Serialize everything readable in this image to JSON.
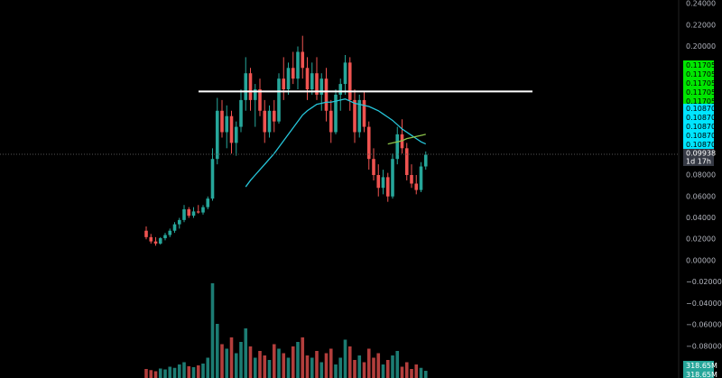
{
  "chart_data": {
    "type": "candlestick",
    "colors": {
      "up": "#26a69a",
      "down": "#ef5350",
      "ma": "#26c6da",
      "ma2": "#8bc34a",
      "hline": "#ffffff"
    },
    "ylim": [
      -0.1095,
      0.2434
    ],
    "yticks": [
      {
        "value": 0.24,
        "label": "0.24000"
      },
      {
        "value": 0.22,
        "label": "0.22000"
      },
      {
        "value": 0.2,
        "label": "0.20000"
      },
      {
        "value": 0.08,
        "label": "0.08000"
      },
      {
        "value": 0.06,
        "label": "0.06000"
      },
      {
        "value": 0.04,
        "label": "0.04000"
      },
      {
        "value": 0.02,
        "label": "0.02000"
      },
      {
        "value": 0,
        "label": "0.00000"
      },
      {
        "value": -0.02,
        "label": "−0.02000"
      },
      {
        "value": -0.04,
        "label": "−0.04000"
      },
      {
        "value": -0.06,
        "label": "−0.06000"
      },
      {
        "value": -0.08,
        "label": "−0.08000"
      }
    ],
    "green_labels": [
      "0.11705",
      "0.11705",
      "0.11705",
      "0.11705",
      "0.11705"
    ],
    "cyan_labels": [
      "0.10870",
      "0.10870",
      "0.10870",
      "0.10870",
      "0.10870"
    ],
    "last_price": {
      "value": 0.09938,
      "label": "0.09938"
    },
    "countdown": "1d 17h",
    "volume_labels": [
      "318.65M",
      "318.65M"
    ],
    "hline": 0.158,
    "volume_lim": [
      0,
      16760
    ],
    "open": [
      0.028,
      0.022,
      0.018,
      0.016,
      0.021,
      0.024,
      0.028,
      0.034,
      0.038,
      0.048,
      0.042,
      0.046,
      0.045,
      0.05,
      0.058,
      0.095,
      0.14,
      0.12,
      0.135,
      0.11,
      0.125,
      0.15,
      0.175,
      0.15,
      0.16,
      0.14,
      0.12,
      0.14,
      0.13,
      0.17,
      0.16,
      0.18,
      0.17,
      0.195,
      0.18,
      0.16,
      0.175,
      0.155,
      0.17,
      0.14,
      0.12,
      0.155,
      0.165,
      0.185,
      0.15,
      0.12,
      0.15,
      0.125,
      0.095,
      0.08,
      0.068,
      0.078,
      0.06,
      0.095,
      0.118,
      0.105,
      0.08,
      0.072,
      0.066,
      0.088
    ],
    "high": [
      0.032,
      0.025,
      0.022,
      0.022,
      0.026,
      0.03,
      0.036,
      0.04,
      0.052,
      0.05,
      0.05,
      0.052,
      0.052,
      0.06,
      0.105,
      0.152,
      0.15,
      0.145,
      0.14,
      0.13,
      0.16,
      0.19,
      0.18,
      0.165,
      0.17,
      0.15,
      0.145,
      0.15,
      0.175,
      0.19,
      0.185,
      0.195,
      0.2,
      0.21,
      0.19,
      0.185,
      0.19,
      0.175,
      0.18,
      0.15,
      0.16,
      0.17,
      0.192,
      0.19,
      0.16,
      0.155,
      0.158,
      0.13,
      0.105,
      0.09,
      0.085,
      0.082,
      0.1,
      0.125,
      0.132,
      0.11,
      0.09,
      0.08,
      0.092,
      0.102
    ],
    "low": [
      0.02,
      0.016,
      0.014,
      0.015,
      0.019,
      0.022,
      0.026,
      0.03,
      0.036,
      0.04,
      0.04,
      0.044,
      0.043,
      0.048,
      0.056,
      0.09,
      0.115,
      0.105,
      0.1,
      0.098,
      0.12,
      0.14,
      0.14,
      0.125,
      0.135,
      0.11,
      0.115,
      0.12,
      0.128,
      0.15,
      0.155,
      0.165,
      0.16,
      0.17,
      0.15,
      0.155,
      0.15,
      0.14,
      0.13,
      0.11,
      0.118,
      0.14,
      0.155,
      0.14,
      0.11,
      0.115,
      0.12,
      0.085,
      0.075,
      0.06,
      0.062,
      0.055,
      0.058,
      0.09,
      0.1,
      0.075,
      0.068,
      0.062,
      0.064,
      0.085
    ],
    "close": [
      0.022,
      0.018,
      0.016,
      0.021,
      0.024,
      0.028,
      0.034,
      0.038,
      0.048,
      0.042,
      0.046,
      0.045,
      0.05,
      0.058,
      0.095,
      0.14,
      0.12,
      0.135,
      0.11,
      0.125,
      0.15,
      0.175,
      0.15,
      0.16,
      0.14,
      0.12,
      0.14,
      0.13,
      0.17,
      0.16,
      0.18,
      0.17,
      0.195,
      0.18,
      0.16,
      0.175,
      0.155,
      0.17,
      0.14,
      0.12,
      0.155,
      0.165,
      0.185,
      0.15,
      0.12,
      0.15,
      0.125,
      0.095,
      0.08,
      0.068,
      0.078,
      0.06,
      0.095,
      0.118,
      0.105,
      0.08,
      0.072,
      0.066,
      0.088,
      0.099
    ],
    "volume": [
      400,
      350,
      300,
      420,
      380,
      500,
      450,
      600,
      700,
      520,
      480,
      560,
      640,
      900,
      4200,
      2400,
      1500,
      1300,
      1800,
      1100,
      1600,
      2200,
      1400,
      900,
      1200,
      1000,
      800,
      1500,
      1300,
      1100,
      900,
      1400,
      1600,
      1800,
      1000,
      900,
      1200,
      700,
      1100,
      1300,
      600,
      900,
      1700,
      1400,
      800,
      1000,
      700,
      1300,
      900,
      1100,
      600,
      800,
      1000,
      1200,
      500,
      700,
      400,
      600,
      450,
      318.65
    ],
    "ma": [
      null,
      null,
      null,
      null,
      null,
      null,
      null,
      null,
      null,
      null,
      null,
      null,
      null,
      null,
      null,
      null,
      null,
      null,
      null,
      null,
      null,
      0.069,
      0.075,
      0.08,
      0.085,
      0.09,
      0.095,
      0.1,
      0.106,
      0.112,
      0.118,
      0.124,
      0.13,
      0.136,
      0.14,
      0.143,
      0.146,
      0.147,
      0.148,
      0.148,
      0.149,
      0.15,
      0.151,
      0.149,
      0.147,
      0.146,
      0.145,
      0.144,
      0.142,
      0.14,
      0.137,
      0.134,
      0.131,
      0.127,
      0.123,
      0.12,
      0.117,
      0.114,
      0.111,
      0.109
    ],
    "ma2": [
      null,
      null,
      null,
      null,
      null,
      null,
      null,
      null,
      null,
      null,
      null,
      null,
      null,
      null,
      null,
      null,
      null,
      null,
      null,
      null,
      null,
      null,
      null,
      null,
      null,
      null,
      null,
      null,
      null,
      null,
      null,
      null,
      null,
      null,
      null,
      null,
      null,
      null,
      null,
      null,
      null,
      null,
      null,
      null,
      null,
      null,
      null,
      null,
      null,
      null,
      null,
      0.109,
      0.11,
      0.111,
      0.112,
      0.114,
      0.115,
      0.116,
      0.117,
      0.118
    ]
  }
}
